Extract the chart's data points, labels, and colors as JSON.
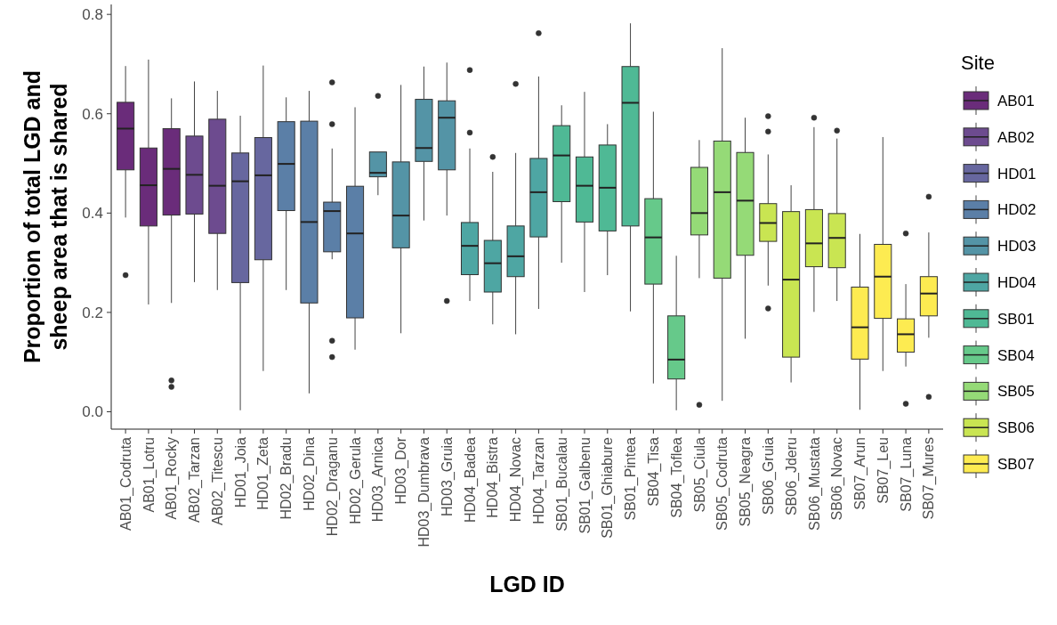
{
  "chart_data": {
    "type": "box",
    "xlabel": "LGD ID",
    "ylabel": "Proportion of total LGD and sheep area that is shared",
    "legend_title": "Site",
    "legend": "right",
    "grid": false,
    "categories": [
      "AB01_Codruta",
      "AB01_Lotru",
      "AB01_Rocky",
      "AB02_Tarzan",
      "AB02_Titescu",
      "HD01_Joia",
      "HD01_Zeta",
      "HD02_Bradu",
      "HD02_Dina",
      "HD02_Draganu",
      "HD02_Gerula",
      "HD03_Arnica",
      "HD03_Dor",
      "HD03_Dumbrava",
      "HD03_Gruia",
      "HD04_Badea",
      "HD04_Bistra",
      "HD04_Novac",
      "HD04_Tarzan",
      "SB01_Bucalau",
      "SB01_Galbenu",
      "SB01_Ghiabure",
      "SB01_Pintea",
      "SB04_Tisa",
      "SB04_Toflea",
      "SB05_Ciula",
      "SB05_Codruta",
      "SB05_Neagra",
      "SB06_Gruia",
      "SB06_Jderu",
      "SB06_Mustata",
      "SB06_Novac",
      "SB07_Arun",
      "SB07_Leu",
      "SB07_Luna",
      "SB07_Mures"
    ],
    "ylim": [
      -0.035,
      0.82
    ],
    "yticks": [
      {
        "value": 0,
        "label": "0.0"
      },
      {
        "value": 0.2,
        "label": "0.2"
      },
      {
        "value": 0.4,
        "label": "0.4"
      },
      {
        "value": 0.6,
        "label": "0.6"
      },
      {
        "value": 0.8,
        "label": "0.8"
      }
    ],
    "series": [
      {
        "name": "AB01",
        "color": "#6a2c7a",
        "boxes": [
          {
            "low": 0.391,
            "q1": 0.487,
            "median": 0.57,
            "q3": 0.623,
            "high": 0.696,
            "outliers": [
              0.275
            ]
          },
          {
            "low": 0.216,
            "q1": 0.374,
            "median": 0.456,
            "q3": 0.531,
            "high": 0.709
          },
          {
            "low": 0.219,
            "q1": 0.396,
            "median": 0.489,
            "q3": 0.57,
            "high": 0.631,
            "outliers": [
              0.063,
              0.05
            ]
          },
          null,
          null,
          null,
          null,
          null,
          null,
          null,
          null,
          null,
          null,
          null,
          null,
          null,
          null,
          null,
          null,
          null,
          null,
          null,
          null,
          null,
          null,
          null,
          null,
          null,
          null,
          null,
          null,
          null,
          null,
          null,
          null,
          null
        ]
      },
      {
        "name": "AB02",
        "color": "#6d4b8f",
        "boxes": [
          null,
          null,
          null,
          {
            "low": 0.261,
            "q1": 0.398,
            "median": 0.477,
            "q3": 0.555,
            "high": 0.665
          },
          {
            "low": 0.245,
            "q1": 0.359,
            "median": 0.455,
            "q3": 0.589,
            "high": 0.646
          },
          null,
          null,
          null,
          null,
          null,
          null,
          null,
          null,
          null,
          null,
          null,
          null,
          null,
          null,
          null,
          null,
          null,
          null,
          null,
          null,
          null,
          null,
          null,
          null,
          null,
          null,
          null,
          null,
          null,
          null,
          null
        ]
      },
      {
        "name": "HD01",
        "color": "#67679f",
        "boxes": [
          null,
          null,
          null,
          null,
          null,
          {
            "low": 0.003,
            "q1": 0.26,
            "median": 0.464,
            "q3": 0.521,
            "high": 0.596
          },
          {
            "low": 0.082,
            "q1": 0.306,
            "median": 0.476,
            "q3": 0.552,
            "high": 0.697
          },
          null,
          null,
          null,
          null,
          null,
          null,
          null,
          null,
          null,
          null,
          null,
          null,
          null,
          null,
          null,
          null,
          null,
          null,
          null,
          null,
          null,
          null,
          null,
          null,
          null,
          null,
          null,
          null,
          null
        ]
      },
      {
        "name": "HD02",
        "color": "#5b7fa7",
        "boxes": [
          null,
          null,
          null,
          null,
          null,
          null,
          null,
          {
            "low": 0.245,
            "q1": 0.405,
            "median": 0.499,
            "q3": 0.584,
            "high": 0.633
          },
          {
            "low": 0.037,
            "q1": 0.219,
            "median": 0.382,
            "q3": 0.585,
            "high": 0.646
          },
          {
            "low": 0.307,
            "q1": 0.322,
            "median": 0.404,
            "q3": 0.422,
            "high": 0.53,
            "outliers": [
              0.663,
              0.579,
              0.143,
              0.11
            ]
          },
          {
            "low": 0.125,
            "q1": 0.189,
            "median": 0.359,
            "q3": 0.454,
            "high": 0.613
          },
          null,
          null,
          null,
          null,
          null,
          null,
          null,
          null,
          null,
          null,
          null,
          null,
          null,
          null,
          null,
          null,
          null,
          null,
          null,
          null,
          null,
          null,
          null,
          null,
          null
        ]
      },
      {
        "name": "HD03",
        "color": "#5494a6",
        "boxes": [
          null,
          null,
          null,
          null,
          null,
          null,
          null,
          null,
          null,
          null,
          null,
          {
            "low": 0.436,
            "q1": 0.473,
            "median": 0.481,
            "q3": 0.523,
            "high": 0.523,
            "outliers": [
              0.636
            ]
          },
          {
            "low": 0.158,
            "q1": 0.33,
            "median": 0.395,
            "q3": 0.503,
            "high": 0.658
          },
          {
            "low": 0.385,
            "q1": 0.504,
            "median": 0.531,
            "q3": 0.629,
            "high": 0.695
          },
          {
            "low": 0.395,
            "q1": 0.487,
            "median": 0.592,
            "q3": 0.626,
            "high": 0.703,
            "outliers": [
              0.223
            ]
          },
          null,
          null,
          null,
          null,
          null,
          null,
          null,
          null,
          null,
          null,
          null,
          null,
          null,
          null,
          null,
          null,
          null,
          null,
          null,
          null,
          null
        ]
      },
      {
        "name": "HD04",
        "color": "#4ea6a3",
        "boxes": [
          null,
          null,
          null,
          null,
          null,
          null,
          null,
          null,
          null,
          null,
          null,
          null,
          null,
          null,
          null,
          {
            "low": 0.223,
            "q1": 0.276,
            "median": 0.334,
            "q3": 0.381,
            "high": 0.53,
            "outliers": [
              0.688,
              0.562
            ]
          },
          {
            "low": 0.176,
            "q1": 0.241,
            "median": 0.299,
            "q3": 0.345,
            "high": 0.483,
            "outliers": [
              0.513
            ]
          },
          {
            "low": 0.156,
            "q1": 0.272,
            "median": 0.313,
            "q3": 0.374,
            "high": 0.521,
            "outliers": [
              0.66
            ]
          },
          {
            "low": 0.207,
            "q1": 0.352,
            "median": 0.442,
            "q3": 0.51,
            "high": 0.675,
            "outliers": [
              0.762
            ]
          },
          null,
          null,
          null,
          null,
          null,
          null,
          null,
          null,
          null,
          null,
          null,
          null,
          null,
          null,
          null,
          null,
          null
        ]
      },
      {
        "name": "SB01",
        "color": "#4fb995",
        "boxes": [
          null,
          null,
          null,
          null,
          null,
          null,
          null,
          null,
          null,
          null,
          null,
          null,
          null,
          null,
          null,
          null,
          null,
          null,
          null,
          {
            "low": 0.3,
            "q1": 0.423,
            "median": 0.516,
            "q3": 0.576,
            "high": 0.617
          },
          {
            "low": 0.241,
            "q1": 0.382,
            "median": 0.455,
            "q3": 0.513,
            "high": 0.644
          },
          {
            "low": 0.275,
            "q1": 0.364,
            "median": 0.451,
            "q3": 0.537,
            "high": 0.579
          },
          {
            "low": 0.202,
            "q1": 0.374,
            "median": 0.622,
            "q3": 0.695,
            "high": 0.782
          },
          null,
          null,
          null,
          null,
          null,
          null,
          null,
          null,
          null,
          null,
          null,
          null,
          null
        ]
      },
      {
        "name": "SB04",
        "color": "#66c98a",
        "boxes": [
          null,
          null,
          null,
          null,
          null,
          null,
          null,
          null,
          null,
          null,
          null,
          null,
          null,
          null,
          null,
          null,
          null,
          null,
          null,
          null,
          null,
          null,
          null,
          {
            "low": 0.057,
            "q1": 0.257,
            "median": 0.351,
            "q3": 0.429,
            "high": 0.604
          },
          {
            "low": 0.003,
            "q1": 0.066,
            "median": 0.105,
            "q3": 0.193,
            "high": 0.314
          },
          null,
          null,
          null,
          null,
          null,
          null,
          null,
          null,
          null,
          null,
          null
        ]
      },
      {
        "name": "SB05",
        "color": "#95da77",
        "boxes": [
          null,
          null,
          null,
          null,
          null,
          null,
          null,
          null,
          null,
          null,
          null,
          null,
          null,
          null,
          null,
          null,
          null,
          null,
          null,
          null,
          null,
          null,
          null,
          null,
          null,
          {
            "low": 0.269,
            "q1": 0.356,
            "median": 0.4,
            "q3": 0.492,
            "high": 0.547,
            "outliers": [
              0.014
            ]
          },
          {
            "low": 0.022,
            "q1": 0.269,
            "median": 0.442,
            "q3": 0.545,
            "high": 0.732
          },
          {
            "low": 0.147,
            "q1": 0.315,
            "median": 0.425,
            "q3": 0.522,
            "high": 0.592
          },
          null,
          null,
          null,
          null,
          null,
          null,
          null,
          null
        ]
      },
      {
        "name": "SB06",
        "color": "#c9e552",
        "boxes": [
          null,
          null,
          null,
          null,
          null,
          null,
          null,
          null,
          null,
          null,
          null,
          null,
          null,
          null,
          null,
          null,
          null,
          null,
          null,
          null,
          null,
          null,
          null,
          null,
          null,
          null,
          null,
          null,
          {
            "low": 0.254,
            "q1": 0.343,
            "median": 0.38,
            "q3": 0.419,
            "high": 0.518,
            "outliers": [
              0.595,
              0.564,
              0.208
            ]
          },
          {
            "low": 0.059,
            "q1": 0.11,
            "median": 0.266,
            "q3": 0.403,
            "high": 0.456
          },
          {
            "low": 0.201,
            "q1": 0.292,
            "median": 0.339,
            "q3": 0.407,
            "high": 0.573,
            "outliers": [
              0.592
            ]
          },
          {
            "low": 0.223,
            "q1": 0.29,
            "median": 0.35,
            "q3": 0.399,
            "high": 0.55,
            "outliers": [
              0.566
            ]
          },
          null,
          null,
          null,
          null
        ]
      },
      {
        "name": "SB07",
        "color": "#fdeb51",
        "boxes": [
          null,
          null,
          null,
          null,
          null,
          null,
          null,
          null,
          null,
          null,
          null,
          null,
          null,
          null,
          null,
          null,
          null,
          null,
          null,
          null,
          null,
          null,
          null,
          null,
          null,
          null,
          null,
          null,
          null,
          null,
          null,
          null,
          {
            "low": 0.004,
            "q1": 0.106,
            "median": 0.17,
            "q3": 0.251,
            "high": 0.358
          },
          {
            "low": 0.082,
            "q1": 0.188,
            "median": 0.272,
            "q3": 0.337,
            "high": 0.553
          },
          {
            "low": 0.091,
            "q1": 0.12,
            "median": 0.156,
            "q3": 0.187,
            "high": 0.257,
            "outliers": [
              0.359,
              0.016
            ]
          },
          {
            "low": 0.149,
            "q1": 0.193,
            "median": 0.238,
            "q3": 0.272,
            "high": 0.361,
            "outliers": [
              0.433,
              0.03
            ]
          }
        ]
      }
    ]
  }
}
